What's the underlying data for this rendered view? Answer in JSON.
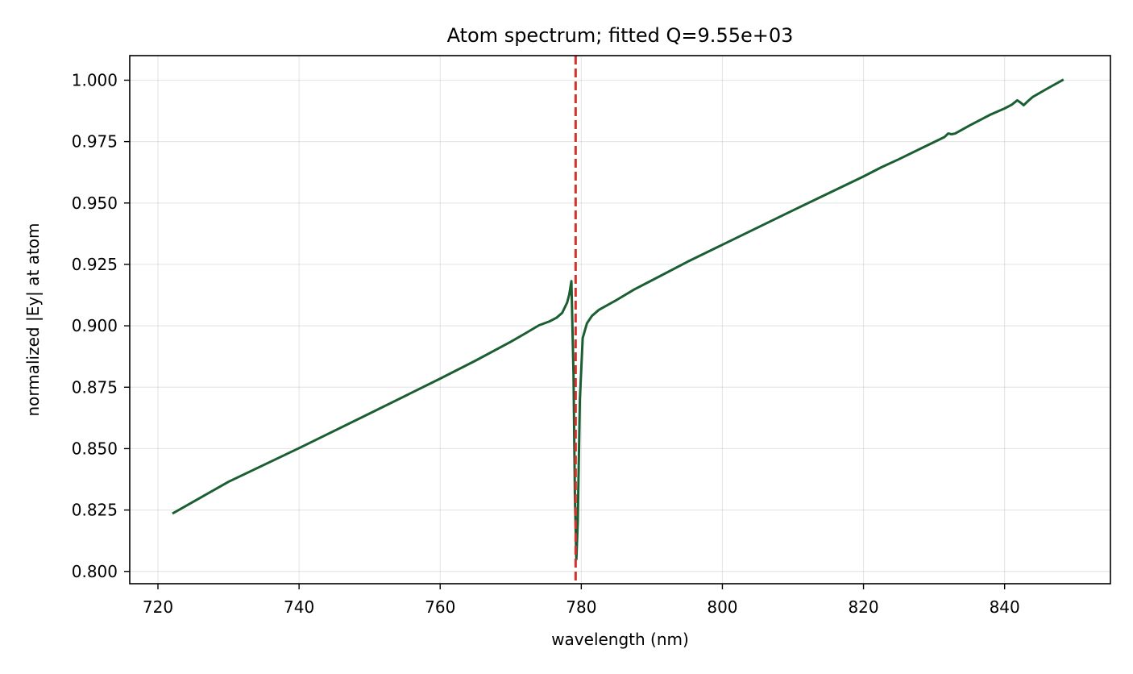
{
  "chart_data": {
    "type": "line",
    "title": "Atom spectrum; fitted Q=9.55e+03",
    "xlabel": "wavelength (nm)",
    "ylabel": "normalized |Ey| at atom",
    "xlim": [
      716,
      855
    ],
    "ylim": [
      0.795,
      1.01
    ],
    "grid": true,
    "xticks": [
      720,
      740,
      760,
      780,
      800,
      820,
      840
    ],
    "xtick_labels": [
      "720",
      "740",
      "760",
      "780",
      "800",
      "820",
      "840"
    ],
    "yticks": [
      0.8,
      0.825,
      0.85,
      0.875,
      0.9,
      0.925,
      0.95,
      0.975,
      1.0
    ],
    "ytick_labels": [
      "0.800",
      "0.825",
      "0.850",
      "0.875",
      "0.900",
      "0.925",
      "0.950",
      "0.975",
      "1.000"
    ],
    "series": [
      {
        "color": "#1a5e32",
        "x": [
          722.2,
          730,
          740,
          750,
          760,
          765,
          770,
          772,
          774,
          775.5,
          776.5,
          777.3,
          778,
          778.3,
          778.6,
          778.9,
          779.1,
          779.3,
          779.5,
          779.8,
          780.2,
          780.8,
          781.5,
          782.5,
          785,
          787.5,
          790,
          795,
          800,
          810,
          820,
          822.5,
          825,
          830,
          831.5,
          832,
          832.5,
          833,
          835,
          837,
          838,
          840,
          841,
          841.8,
          842.3,
          842.7,
          843.2,
          844,
          846,
          848.2
        ],
        "y": [
          0.8238,
          0.8365,
          0.8502,
          0.8643,
          0.8785,
          0.8858,
          0.8935,
          0.8968,
          0.9002,
          0.9018,
          0.9033,
          0.9053,
          0.9095,
          0.9128,
          0.9182,
          0.88,
          0.83,
          0.805,
          0.82,
          0.87,
          0.895,
          0.901,
          0.904,
          0.9065,
          0.9105,
          0.9148,
          0.9185,
          0.926,
          0.933,
          0.947,
          0.9608,
          0.9645,
          0.9678,
          0.9748,
          0.9769,
          0.9783,
          0.978,
          0.9783,
          0.9815,
          0.9845,
          0.986,
          0.9885,
          0.99,
          0.9918,
          0.9908,
          0.9898,
          0.9912,
          0.9932,
          0.9965,
          1.0
        ]
      }
    ],
    "vlines": [
      {
        "x": 779.2,
        "color": "#d6312b",
        "style": "dashed"
      }
    ]
  }
}
